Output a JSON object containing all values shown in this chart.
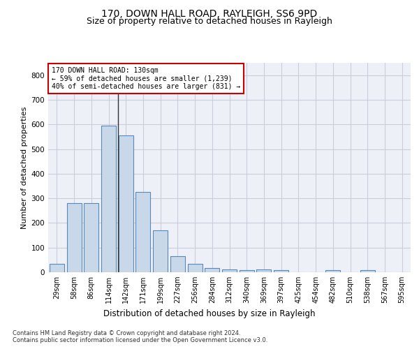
{
  "title": "170, DOWN HALL ROAD, RAYLEIGH, SS6 9PD",
  "subtitle": "Size of property relative to detached houses in Rayleigh",
  "xlabel": "Distribution of detached houses by size in Rayleigh",
  "ylabel": "Number of detached properties",
  "bin_labels": [
    "29sqm",
    "58sqm",
    "86sqm",
    "114sqm",
    "142sqm",
    "171sqm",
    "199sqm",
    "227sqm",
    "256sqm",
    "284sqm",
    "312sqm",
    "340sqm",
    "369sqm",
    "397sqm",
    "425sqm",
    "454sqm",
    "482sqm",
    "510sqm",
    "538sqm",
    "567sqm",
    "595sqm"
  ],
  "bar_heights": [
    35,
    280,
    280,
    595,
    555,
    325,
    170,
    65,
    35,
    18,
    12,
    8,
    10,
    8,
    0,
    0,
    8,
    0,
    8,
    0,
    0
  ],
  "bar_color": "#c8d8e8",
  "bar_edge_color": "#5588bb",
  "grid_color": "#ccccdd",
  "bg_color": "#eef0f8",
  "vline_x": 3.55,
  "vline_color": "#333333",
  "annotation_text": "170 DOWN HALL ROAD: 130sqm\n← 59% of detached houses are smaller (1,239)\n40% of semi-detached houses are larger (831) →",
  "annotation_box_color": "#cc0000",
  "annotation_bg": "#ffffff",
  "ylim": [
    0,
    850
  ],
  "yticks": [
    0,
    100,
    200,
    300,
    400,
    500,
    600,
    700,
    800
  ],
  "footer_text": "Contains HM Land Registry data © Crown copyright and database right 2024.\nContains public sector information licensed under the Open Government Licence v3.0.",
  "title_fontsize": 10,
  "subtitle_fontsize": 9,
  "tick_fontsize": 7,
  "ylabel_fontsize": 8,
  "xlabel_fontsize": 8.5,
  "annotation_fontsize": 7,
  "footer_fontsize": 6
}
